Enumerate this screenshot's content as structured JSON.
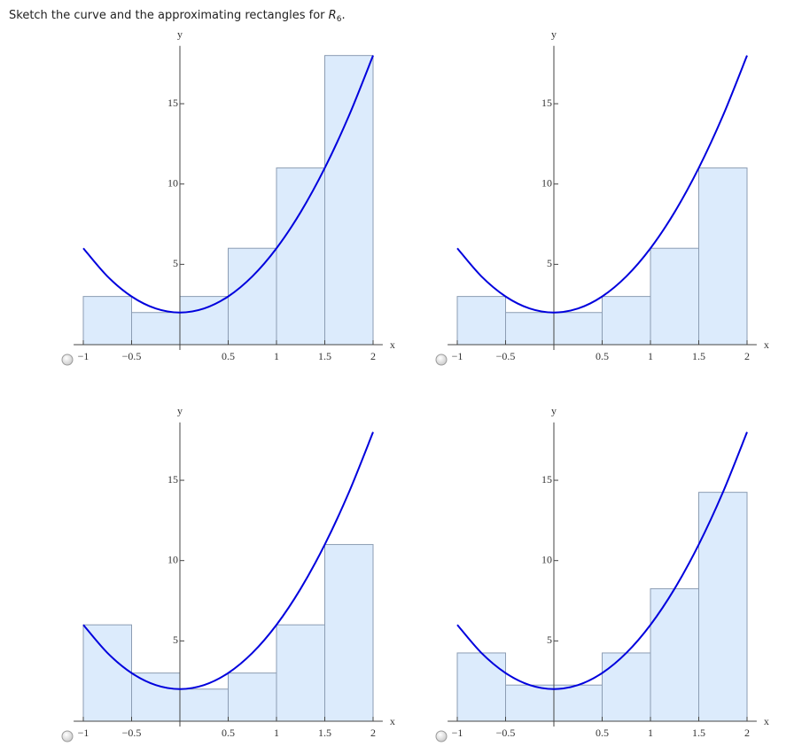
{
  "question": {
    "text": "Sketch the curve and the approximating rectangles for",
    "var": "R",
    "sub": "6",
    "end": "."
  },
  "chart_data": [
    {
      "type": "histogram",
      "xlabel": "x",
      "ylabel": "y",
      "bins": [
        -1,
        -0.5,
        0,
        0.5,
        1,
        1.5,
        2
      ],
      "values": [
        3,
        2,
        3,
        6,
        11,
        18
      ],
      "color": "#dcebfc",
      "edge_color": "#8c9db3",
      "curve": {
        "color": "#0000dd",
        "x": [
          -1,
          -0.75,
          -0.5,
          -0.25,
          0,
          0.25,
          0.5,
          0.75,
          1,
          1.25,
          1.5,
          1.75,
          2
        ],
        "y": [
          6,
          4.25,
          3,
          2.25,
          2,
          2.25,
          3,
          4.25,
          6,
          8.25,
          11,
          14.25,
          18
        ]
      },
      "xlim": [
        -1.1,
        2.1
      ],
      "ylim": [
        0,
        18.6
      ],
      "xticks": [
        {
          "value": -1,
          "label": "−1"
        },
        {
          "value": -0.5,
          "label": "−0.5"
        },
        0.5,
        1,
        1.5,
        2
      ],
      "yticks": [
        5,
        10,
        15
      ]
    },
    {
      "type": "histogram",
      "xlabel": "x",
      "ylabel": "y",
      "bins": [
        -1,
        -0.5,
        0,
        0.5,
        1,
        1.5,
        2
      ],
      "values": [
        3,
        2,
        2,
        3,
        6,
        11
      ],
      "color": "#dcebfc",
      "edge_color": "#8c9db3",
      "curve": {
        "color": "#0000dd",
        "x": [
          -1,
          -0.75,
          -0.5,
          -0.25,
          0,
          0.25,
          0.5,
          0.75,
          1,
          1.25,
          1.5,
          1.75,
          2
        ],
        "y": [
          6,
          4.25,
          3,
          2.25,
          2,
          2.25,
          3,
          4.25,
          6,
          8.25,
          11,
          14.25,
          18
        ]
      },
      "xlim": [
        -1.1,
        2.1
      ],
      "ylim": [
        0,
        18.6
      ],
      "xticks": [
        {
          "value": -1,
          "label": "−1"
        },
        {
          "value": -0.5,
          "label": "−0.5"
        },
        0.5,
        1,
        1.5,
        2
      ],
      "yticks": [
        5,
        10,
        15
      ]
    },
    {
      "type": "histogram",
      "xlabel": "x",
      "ylabel": "y",
      "bins": [
        -1,
        -0.5,
        0,
        0.5,
        1,
        1.5,
        2
      ],
      "values": [
        6,
        3,
        2,
        3,
        6,
        11
      ],
      "color": "#dcebfc",
      "edge_color": "#8c9db3",
      "curve": {
        "color": "#0000dd",
        "x": [
          -1,
          -0.75,
          -0.5,
          -0.25,
          0,
          0.25,
          0.5,
          0.75,
          1,
          1.25,
          1.5,
          1.75,
          2
        ],
        "y": [
          6,
          4.25,
          3,
          2.25,
          2,
          2.25,
          3,
          4.25,
          6,
          8.25,
          11,
          14.25,
          18
        ]
      },
      "xlim": [
        -1.1,
        2.1
      ],
      "ylim": [
        0,
        18.6
      ],
      "xticks": [
        {
          "value": -1,
          "label": "−1"
        },
        {
          "value": -0.5,
          "label": "−0.5"
        },
        0.5,
        1,
        1.5,
        2
      ],
      "yticks": [
        5,
        10,
        15
      ]
    },
    {
      "type": "histogram",
      "xlabel": "x",
      "ylabel": "y",
      "bins": [
        -1,
        -0.5,
        0,
        0.5,
        1,
        1.5,
        2
      ],
      "values": [
        4.25,
        2.25,
        2.25,
        4.25,
        8.25,
        14.25
      ],
      "color": "#dcebfc",
      "edge_color": "#8c9db3",
      "curve": {
        "color": "#0000dd",
        "x": [
          -1,
          -0.75,
          -0.5,
          -0.25,
          0,
          0.25,
          0.5,
          0.75,
          1,
          1.25,
          1.5,
          1.75,
          2
        ],
        "y": [
          6,
          4.25,
          3,
          2.25,
          2,
          2.25,
          3,
          4.25,
          6,
          8.25,
          11,
          14.25,
          18
        ]
      },
      "xlim": [
        -1.1,
        2.1
      ],
      "ylim": [
        0,
        18.6
      ],
      "xticks": [
        {
          "value": -1,
          "label": "−1"
        },
        {
          "value": -0.5,
          "label": "−0.5"
        },
        0.5,
        1,
        1.5,
        2
      ],
      "yticks": [
        5,
        10,
        15
      ]
    }
  ]
}
